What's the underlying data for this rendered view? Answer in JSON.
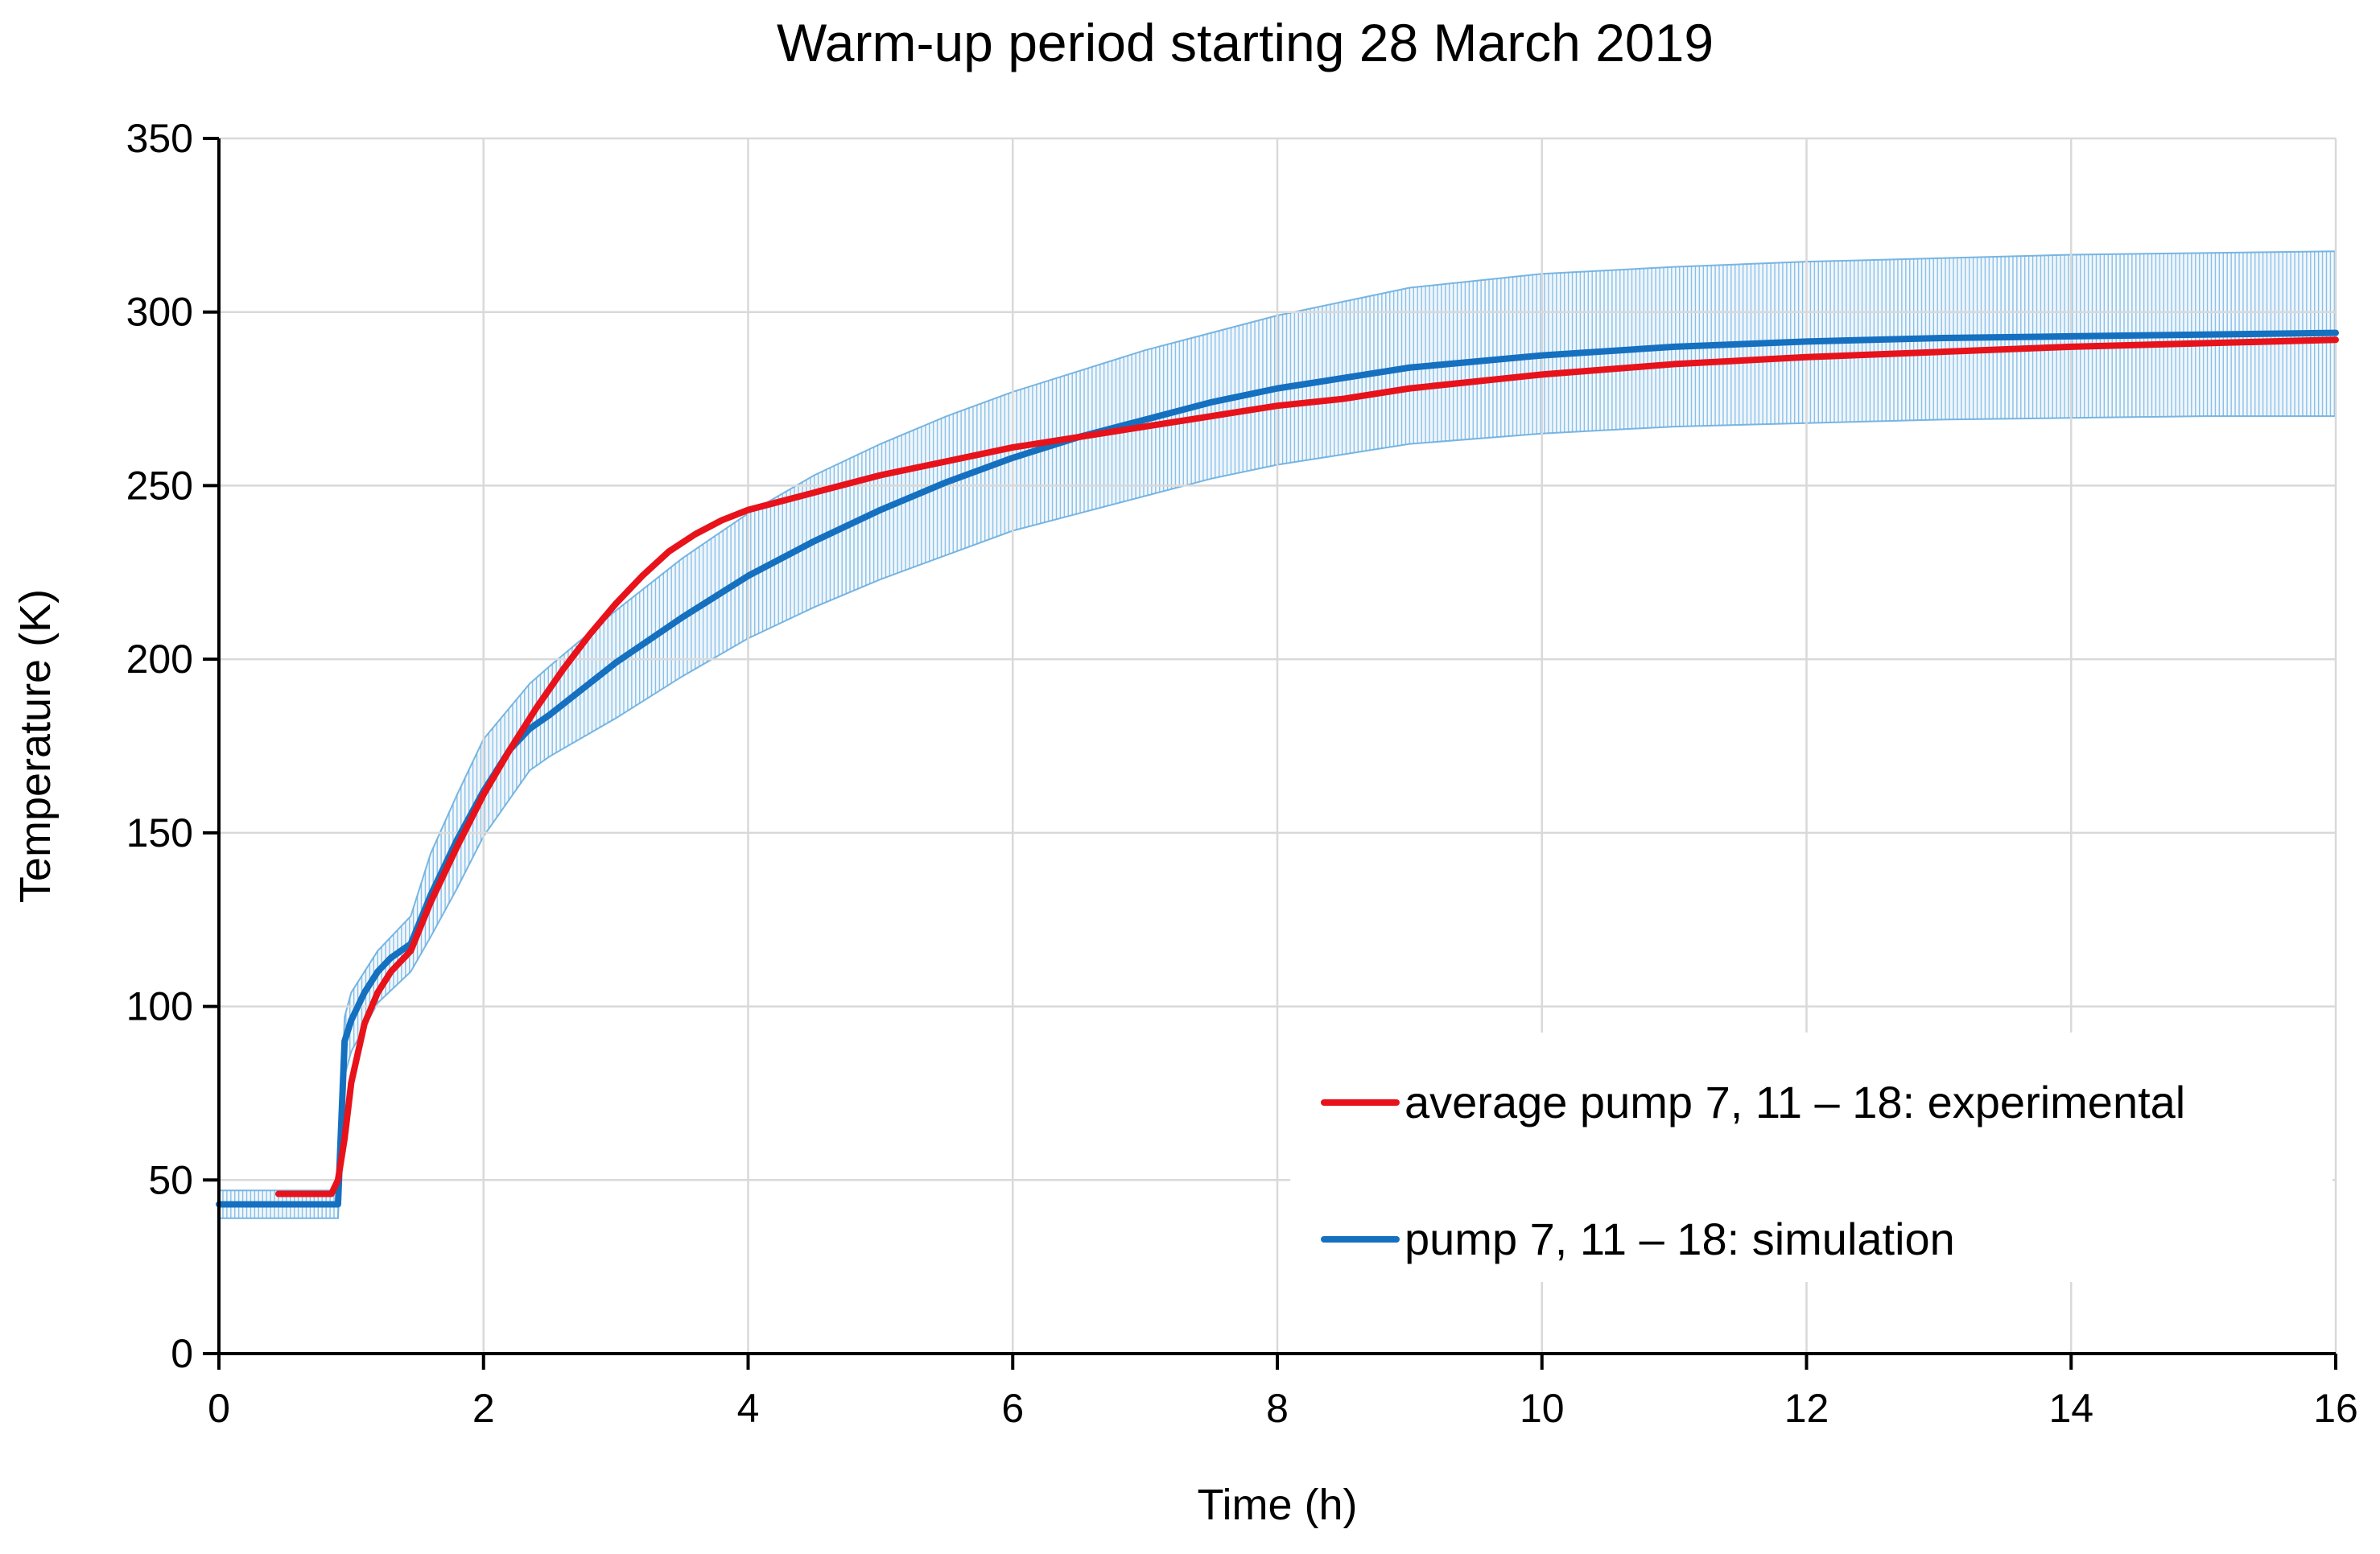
{
  "chart_data": {
    "type": "line",
    "title": "Warm-up period starting 28 March 2019",
    "xlabel": "Time (h)",
    "ylabel": "Temperature (K)",
    "xlim": [
      0,
      16
    ],
    "ylim": [
      0,
      350
    ],
    "x_ticks": [
      0,
      2,
      4,
      6,
      8,
      10,
      12,
      14,
      16
    ],
    "y_ticks": [
      0,
      50,
      100,
      150,
      200,
      250,
      300,
      350
    ],
    "grid": true,
    "legend_position": "bottom-right",
    "series": [
      {
        "name": "average pump 7, 11 – 18: experimental",
        "color": "#e8121b",
        "x": [
          0.45,
          0.85,
          0.9,
          0.95,
          1.0,
          1.1,
          1.2,
          1.3,
          1.45,
          1.6,
          1.8,
          2.0,
          2.2,
          2.4,
          2.6,
          2.8,
          3.0,
          3.2,
          3.4,
          3.6,
          3.8,
          4.0,
          4.2,
          4.5,
          5.0,
          5.5,
          6.0,
          6.5,
          7.0,
          7.5,
          8.0,
          8.5,
          9.0,
          10.0,
          11.0,
          12.0,
          13.0,
          14.0,
          15.0,
          16.0
        ],
        "y": [
          46,
          46,
          50,
          62,
          78,
          95,
          104,
          110,
          116,
          130,
          146,
          161,
          174,
          186,
          197,
          207,
          216,
          224,
          231,
          236,
          240,
          243,
          245,
          248,
          253,
          257,
          261,
          264,
          267,
          270,
          273,
          275,
          278,
          282,
          285,
          287,
          288.5,
          290,
          291,
          292
        ]
      },
      {
        "name": "pump 7, 11 – 18: simulation",
        "color": "#1570c0",
        "x": [
          0.0,
          0.9,
          0.95,
          1.0,
          1.1,
          1.2,
          1.3,
          1.45,
          1.6,
          1.8,
          2.0,
          2.2,
          2.35,
          2.5,
          2.7,
          3.0,
          3.5,
          4.0,
          4.5,
          5.0,
          5.5,
          6.0,
          6.5,
          7.0,
          7.5,
          8.0,
          8.5,
          9.0,
          10.0,
          11.0,
          12.0,
          13.0,
          14.0,
          15.0,
          16.0
        ],
        "y": [
          43,
          43,
          90,
          96,
          104,
          110,
          114,
          118,
          132,
          148,
          162,
          174,
          180,
          184,
          190,
          199,
          212,
          224,
          234,
          243,
          251,
          258,
          264,
          269,
          274,
          278,
          281,
          284,
          287.5,
          290,
          291.5,
          292.5,
          293,
          293.5,
          294
        ]
      }
    ],
    "uncertainty_band": {
      "series": "pump 7, 11 – 18: simulation",
      "color": "#6aaee0",
      "x": [
        0.0,
        0.9,
        0.95,
        1.0,
        1.2,
        1.45,
        1.6,
        1.8,
        2.0,
        2.35,
        2.5,
        3.0,
        3.5,
        4.0,
        4.5,
        5.0,
        5.5,
        6.0,
        6.5,
        7.0,
        7.5,
        8.0,
        8.5,
        9.0,
        10.0,
        11.0,
        12.0,
        13.0,
        14.0,
        15.0,
        16.0
      ],
      "lower": [
        39,
        39,
        80,
        87,
        101,
        110,
        120,
        134,
        149,
        168,
        172,
        183,
        195,
        206,
        215,
        223,
        230,
        237,
        242,
        247,
        252,
        256,
        259,
        262,
        265,
        267,
        268,
        269,
        269.5,
        270,
        270
      ],
      "upper": [
        47,
        47,
        97,
        104,
        116,
        126,
        144,
        161,
        177,
        193,
        198,
        214,
        229,
        242,
        253,
        262,
        270,
        277,
        283,
        289,
        294,
        299,
        303,
        307,
        311,
        313,
        314.5,
        315.5,
        316.5,
        317,
        317.5
      ]
    }
  }
}
